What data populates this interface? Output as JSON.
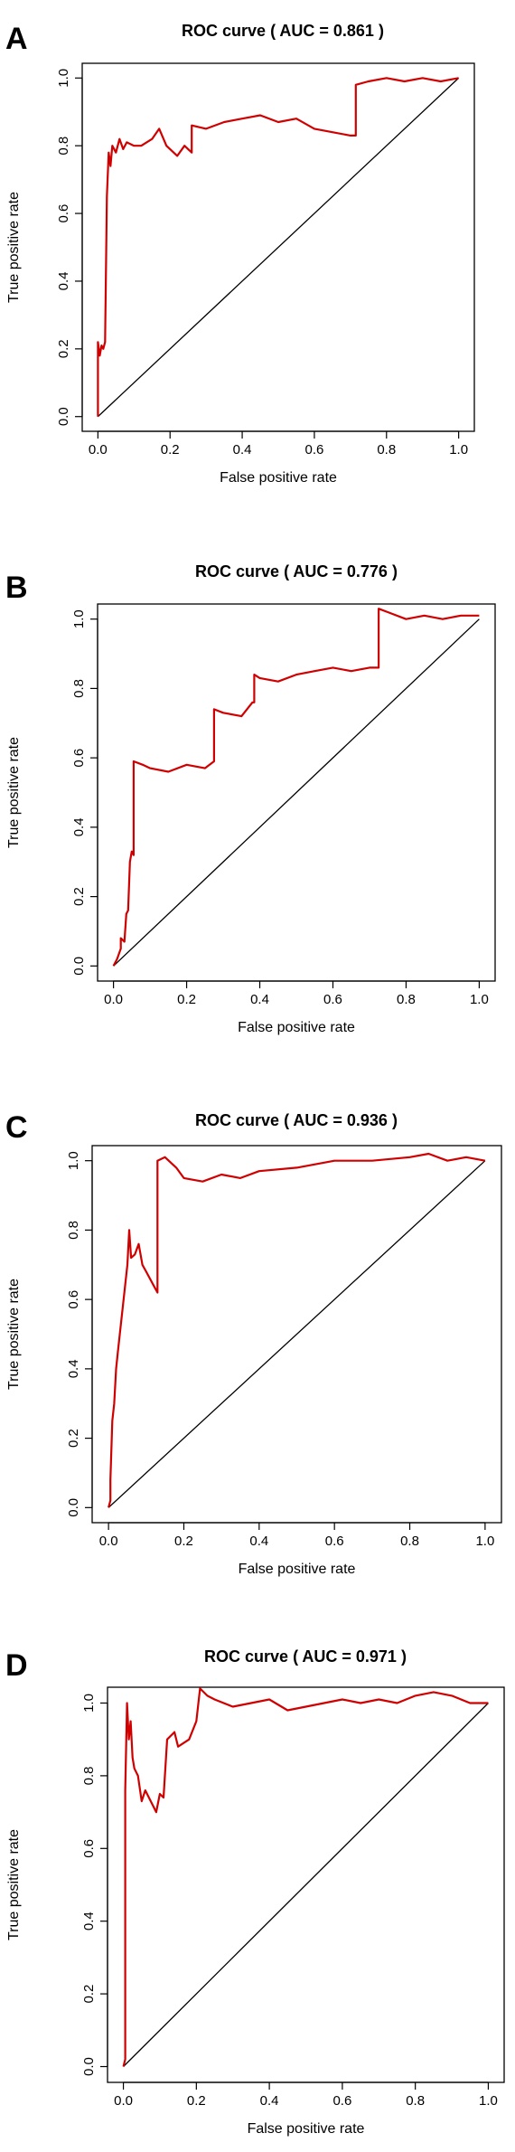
{
  "colors": {
    "roc": "#d10000",
    "diagonal": "#000000"
  },
  "chart_data": [
    {
      "type": "line",
      "panel_label": "A",
      "title": "ROC curve ( AUC =  0.861 )",
      "xlabel": "False positive rate",
      "ylabel": "True positive rate",
      "xlim": [
        0,
        1
      ],
      "ylim": [
        0,
        1
      ],
      "xticks": [
        "0.0",
        "0.2",
        "0.4",
        "0.6",
        "0.8",
        "1.0"
      ],
      "yticks": [
        "0.0",
        "0.2",
        "0.4",
        "0.6",
        "0.8",
        "1.0"
      ],
      "reference_line": {
        "x": [
          0,
          1
        ],
        "y": [
          0,
          1
        ]
      },
      "series": [
        {
          "x": [
            0,
            0,
            0.005,
            0.01,
            0.015,
            0.02,
            0.025,
            0.03,
            0.035,
            0.04,
            0.05,
            0.06,
            0.07,
            0.08,
            0.1,
            0.12,
            0.15,
            0.17,
            0.19,
            0.2,
            0.22,
            0.24,
            0.26,
            0.26,
            0.3,
            0.35,
            0.4,
            0.45,
            0.5,
            0.55,
            0.6,
            0.65,
            0.7,
            0.715,
            0.715,
            0.75,
            0.8,
            0.85,
            0.9,
            0.95,
            1
          ],
          "y": [
            0,
            0.22,
            0.18,
            0.21,
            0.2,
            0.22,
            0.65,
            0.78,
            0.74,
            0.8,
            0.78,
            0.82,
            0.79,
            0.81,
            0.8,
            0.8,
            0.82,
            0.85,
            0.8,
            0.79,
            0.77,
            0.8,
            0.78,
            0.86,
            0.85,
            0.87,
            0.88,
            0.89,
            0.87,
            0.88,
            0.85,
            0.84,
            0.83,
            0.83,
            0.98,
            0.99,
            1.0,
            0.99,
            1.0,
            0.99,
            1.0
          ]
        }
      ]
    },
    {
      "type": "line",
      "panel_label": "B",
      "title": "ROC curve ( AUC =  0.776 )",
      "xlabel": "False positive rate",
      "ylabel": "True positive rate",
      "xlim": [
        0,
        1
      ],
      "ylim": [
        0,
        1
      ],
      "xticks": [
        "0.0",
        "0.2",
        "0.4",
        "0.6",
        "0.8",
        "1.0"
      ],
      "yticks": [
        "0.0",
        "0.2",
        "0.4",
        "0.6",
        "0.8",
        "1.0"
      ],
      "reference_line": {
        "x": [
          0,
          1
        ],
        "y": [
          0,
          1
        ]
      },
      "series": [
        {
          "x": [
            0,
            0.01,
            0.02,
            0.02,
            0.03,
            0.035,
            0.04,
            0.045,
            0.05,
            0.055,
            0.055,
            0.08,
            0.1,
            0.15,
            0.2,
            0.25,
            0.275,
            0.275,
            0.3,
            0.35,
            0.38,
            0.385,
            0.385,
            0.4,
            0.45,
            0.5,
            0.55,
            0.6,
            0.65,
            0.7,
            0.725,
            0.725,
            0.75,
            0.8,
            0.85,
            0.9,
            0.95,
            1
          ],
          "y": [
            0,
            0.02,
            0.05,
            0.08,
            0.07,
            0.15,
            0.16,
            0.3,
            0.33,
            0.32,
            0.59,
            0.58,
            0.57,
            0.56,
            0.58,
            0.57,
            0.59,
            0.74,
            0.73,
            0.72,
            0.76,
            0.76,
            0.84,
            0.83,
            0.82,
            0.84,
            0.85,
            0.86,
            0.85,
            0.86,
            0.86,
            1.03,
            1.02,
            1.0,
            1.01,
            1.0,
            1.01,
            1.01
          ]
        }
      ]
    },
    {
      "type": "line",
      "panel_label": "C",
      "title": "ROC curve ( AUC =  0.936 )",
      "xlabel": "False positive rate",
      "ylabel": "True positive rate",
      "xlim": [
        0,
        1
      ],
      "ylim": [
        0,
        1
      ],
      "xticks": [
        "0.0",
        "0.2",
        "0.4",
        "0.6",
        "0.8",
        "1.0"
      ],
      "yticks": [
        "0.0",
        "0.2",
        "0.4",
        "0.6",
        "0.8",
        "1.0"
      ],
      "reference_line": {
        "x": [
          0,
          1
        ],
        "y": [
          0,
          1
        ]
      },
      "series": [
        {
          "x": [
            0,
            0.005,
            0.005,
            0.01,
            0.015,
            0.02,
            0.025,
            0.03,
            0.04,
            0.05,
            0.055,
            0.06,
            0.07,
            0.08,
            0.09,
            0.1,
            0.12,
            0.13,
            0.13,
            0.15,
            0.18,
            0.2,
            0.25,
            0.3,
            0.35,
            0.4,
            0.5,
            0.6,
            0.7,
            0.8,
            0.85,
            0.9,
            0.95,
            1
          ],
          "y": [
            0,
            0.02,
            0.08,
            0.25,
            0.3,
            0.4,
            0.45,
            0.5,
            0.6,
            0.7,
            0.8,
            0.72,
            0.73,
            0.76,
            0.7,
            0.68,
            0.64,
            0.62,
            1.0,
            1.01,
            0.98,
            0.95,
            0.94,
            0.96,
            0.95,
            0.97,
            0.98,
            1.0,
            1.0,
            1.01,
            1.02,
            1.0,
            1.01,
            1.0
          ]
        }
      ]
    },
    {
      "type": "line",
      "panel_label": "D",
      "title": "ROC curve ( AUC =  0.971 )",
      "xlabel": "False positive rate",
      "ylabel": "True positive rate",
      "xlim": [
        0,
        1
      ],
      "ylim": [
        0,
        1
      ],
      "xticks": [
        "0.0",
        "0.2",
        "0.4",
        "0.6",
        "0.8",
        "1.0"
      ],
      "yticks": [
        "0.0",
        "0.2",
        "0.4",
        "0.6",
        "0.8",
        "1.0"
      ],
      "reference_line": {
        "x": [
          0,
          1
        ],
        "y": [
          0,
          1
        ]
      },
      "series": [
        {
          "x": [
            0,
            0.005,
            0.005,
            0.01,
            0.015,
            0.02,
            0.025,
            0.03,
            0.04,
            0.05,
            0.06,
            0.07,
            0.08,
            0.09,
            0.1,
            0.11,
            0.12,
            0.14,
            0.15,
            0.18,
            0.2,
            0.21,
            0.23,
            0.25,
            0.3,
            0.35,
            0.4,
            0.45,
            0.5,
            0.55,
            0.6,
            0.65,
            0.7,
            0.75,
            0.8,
            0.85,
            0.9,
            0.95,
            1
          ],
          "y": [
            0,
            0.02,
            0.76,
            1.0,
            0.9,
            0.95,
            0.85,
            0.82,
            0.8,
            0.73,
            0.76,
            0.74,
            0.72,
            0.7,
            0.75,
            0.74,
            0.9,
            0.92,
            0.88,
            0.9,
            0.95,
            1.04,
            1.02,
            1.01,
            0.99,
            1.0,
            1.01,
            0.98,
            0.99,
            1.0,
            1.01,
            1.0,
            1.01,
            1.0,
            1.02,
            1.03,
            1.02,
            1.0,
            1.0
          ]
        }
      ]
    }
  ]
}
